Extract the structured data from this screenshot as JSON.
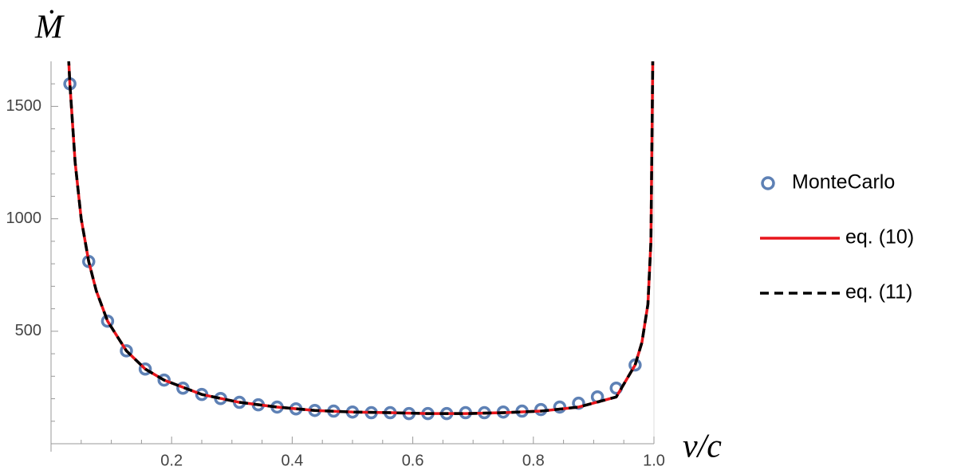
{
  "chart_data": {
    "type": "line",
    "xlabel": "v/c",
    "ylabel": "Ṁ",
    "xlim": [
      0,
      1.0
    ],
    "ylim": [
      0,
      1700
    ],
    "xticks": [
      0.2,
      0.4,
      0.6,
      0.8,
      {
        "value": 1.0,
        "label": "1.0"
      }
    ],
    "yticks": [
      500,
      1000,
      1500
    ],
    "xminorticks": [
      0.05,
      0.1,
      0.15,
      0.25,
      0.3,
      0.35,
      0.45,
      0.5,
      0.55,
      0.65,
      0.7,
      0.75,
      0.85,
      0.9,
      0.95
    ],
    "yminorticks": [
      100,
      200,
      300,
      400,
      600,
      700,
      800,
      900,
      1100,
      1200,
      1300,
      1400,
      1600
    ],
    "legend": "right",
    "series": [
      {
        "name": "MonteCarlo",
        "mark": "circle",
        "color": "#5e81b5",
        "x": [
          0.03125,
          0.0625,
          0.09375,
          0.125,
          0.15625,
          0.1875,
          0.21875,
          0.25,
          0.28125,
          0.3125,
          0.34375,
          0.375,
          0.40625,
          0.4375,
          0.46875,
          0.5,
          0.53125,
          0.5625,
          0.59375,
          0.625,
          0.65625,
          0.6875,
          0.71875,
          0.75,
          0.78125,
          0.8125,
          0.84375,
          0.875,
          0.90625,
          0.9375,
          0.96875
        ],
        "values": [
          1600,
          810,
          545,
          413,
          332,
          283,
          247,
          219,
          201,
          184,
          173,
          163,
          155,
          148,
          145,
          141,
          138,
          138,
          134,
          134,
          134,
          138,
          138,
          141,
          145,
          152,
          163,
          180,
          208,
          247,
          350
        ]
      },
      {
        "name": "eq. (10)",
        "mark": "line",
        "dash": false,
        "color": "#e8151b",
        "x": [
          0.029,
          0.03125,
          0.04,
          0.05,
          0.0625,
          0.075,
          0.09375,
          0.125,
          0.15625,
          0.1875,
          0.25,
          0.3125,
          0.375,
          0.4375,
          0.5,
          0.5625,
          0.625,
          0.6875,
          0.75,
          0.8125,
          0.875,
          0.9375,
          0.96875,
          0.98,
          0.99,
          0.995,
          0.998
        ],
        "values": [
          1720,
          1600,
          1250,
          1000,
          810,
          680,
          545,
          413,
          332,
          283,
          219,
          184,
          163,
          148,
          141,
          138,
          134,
          134,
          138,
          145,
          163,
          208,
          350,
          450,
          620,
          900,
          1700
        ]
      },
      {
        "name": "eq. (11)",
        "mark": "line",
        "dash": true,
        "color": "#000000",
        "x": [
          0.029,
          0.03125,
          0.04,
          0.05,
          0.0625,
          0.075,
          0.09375,
          0.125,
          0.15625,
          0.1875,
          0.25,
          0.3125,
          0.375,
          0.4375,
          0.5,
          0.5625,
          0.625,
          0.6875,
          0.75,
          0.8125,
          0.875,
          0.9375,
          0.96875,
          0.98,
          0.99,
          0.995,
          0.998
        ],
        "values": [
          1720,
          1600,
          1250,
          1000,
          810,
          680,
          545,
          413,
          332,
          283,
          219,
          184,
          163,
          148,
          141,
          138,
          134,
          134,
          138,
          145,
          163,
          208,
          350,
          450,
          620,
          900,
          1700
        ]
      }
    ]
  }
}
